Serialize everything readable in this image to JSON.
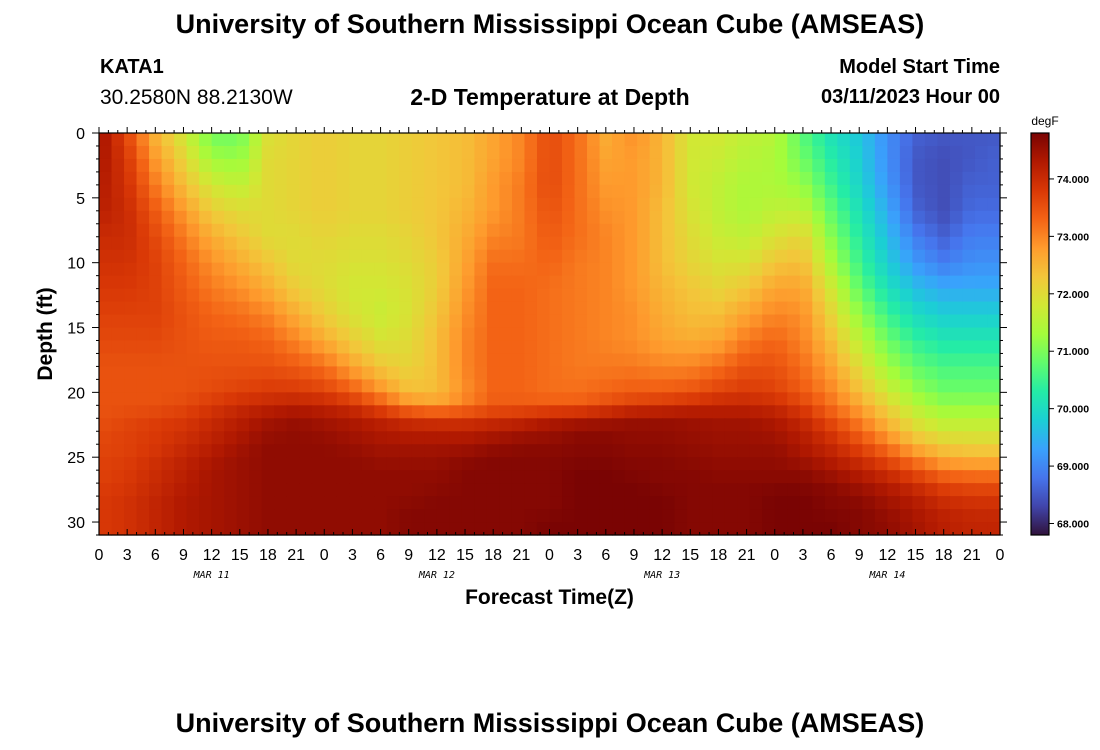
{
  "page": {
    "title": "University of Southern Mississippi Ocean Cube (AMSEAS)",
    "title_repeat": "University of Southern Mississippi Ocean Cube (AMSEAS)",
    "station_id": "KATA1",
    "station_coords": "30.2580N  88.2130W",
    "subtitle": "2-D Temperature at Depth",
    "model_start_label": "Model Start Time",
    "model_start_value": "03/11/2023 Hour 00"
  },
  "chart_data": {
    "type": "heatmap",
    "title": "2-D Temperature at Depth",
    "xlabel": "Forecast Time(Z)",
    "ylabel": "Depth (ft)",
    "x_range_hours": [
      0,
      96
    ],
    "ylim": [
      0,
      31
    ],
    "x_tick_labels": [
      "0",
      "3",
      "6",
      "9",
      "12",
      "15",
      "18",
      "21",
      "0",
      "3",
      "6",
      "9",
      "12",
      "15",
      "18",
      "21",
      "0",
      "3",
      "6",
      "9",
      "12",
      "15",
      "18",
      "21",
      "0",
      "3",
      "6",
      "9",
      "12",
      "15",
      "18",
      "21",
      "0"
    ],
    "x_tick_step_hours": 3,
    "day_labels": [
      {
        "label": "MAR 11",
        "hour": 12
      },
      {
        "label": "MAR 12",
        "hour": 36
      },
      {
        "label": "MAR 13",
        "hour": 60
      },
      {
        "label": "MAR 14",
        "hour": 84
      }
    ],
    "y_ticks": [
      0,
      5,
      10,
      15,
      20,
      25,
      30
    ],
    "colorbar": {
      "unit": "degF",
      "min": 67.8,
      "max": 74.8,
      "tick_values": [
        68,
        69,
        70,
        71,
        72,
        73,
        74
      ],
      "tick_labels": [
        "68.000",
        "69.000",
        "70.000",
        "71.000",
        "72.000",
        "73.000",
        "74.000"
      ]
    },
    "colormap": [
      "#30123b",
      "#4145ab",
      "#4675ed",
      "#39a2fc",
      "#1bcfd4",
      "#24eca6",
      "#61fc6c",
      "#a4fc3b",
      "#d1e834",
      "#f3c63a",
      "#fe9b2d",
      "#f36315",
      "#d93806",
      "#b11901",
      "#7a0403"
    ],
    "depth_levels": [
      0,
      2,
      4,
      6,
      8,
      10,
      12,
      14,
      16,
      18,
      20,
      21,
      22,
      23,
      24,
      25,
      26,
      27,
      28,
      29,
      30,
      31
    ],
    "time_hours": [
      0,
      3,
      6,
      9,
      12,
      15,
      18,
      21,
      24,
      27,
      30,
      33,
      36,
      39,
      42,
      45,
      48,
      51,
      54,
      57,
      60,
      63,
      66,
      69,
      72,
      75,
      78,
      81,
      84,
      87,
      90,
      93,
      96
    ],
    "values": [
      [
        74.5,
        73.6,
        72.5,
        71.8,
        70.9,
        70.9,
        71.9,
        72.1,
        72.2,
        72.1,
        72.1,
        72.2,
        72.3,
        72.4,
        72.7,
        73.0,
        73.6,
        73.2,
        72.6,
        72.9,
        72.5,
        71.8,
        71.8,
        71.6,
        71.5,
        70.7,
        70.1,
        69.7,
        69.1,
        68.6,
        68.5,
        68.5,
        68.5
      ],
      [
        74.4,
        73.8,
        72.8,
        72.1,
        71.3,
        71.2,
        72.0,
        72.1,
        72.2,
        72.1,
        72.1,
        72.2,
        72.3,
        72.4,
        72.7,
        73.0,
        73.6,
        73.2,
        72.7,
        72.8,
        72.5,
        71.8,
        71.7,
        71.5,
        71.4,
        70.9,
        70.3,
        69.8,
        69.1,
        68.5,
        68.4,
        68.5,
        68.6
      ],
      [
        74.3,
        73.9,
        73.1,
        72.4,
        71.8,
        71.6,
        72.0,
        72.1,
        72.2,
        72.1,
        72.1,
        72.2,
        72.3,
        72.4,
        72.8,
        73.1,
        73.6,
        73.2,
        72.8,
        72.8,
        72.5,
        71.8,
        71.6,
        71.4,
        71.4,
        71.2,
        70.5,
        69.9,
        69.2,
        68.5,
        68.4,
        68.6,
        68.6
      ],
      [
        74.2,
        74.0,
        73.4,
        72.8,
        72.2,
        72.0,
        72.0,
        72.1,
        72.2,
        72.1,
        72.1,
        72.2,
        72.3,
        72.5,
        72.8,
        73.1,
        73.5,
        73.2,
        72.9,
        72.8,
        72.4,
        71.9,
        71.6,
        71.4,
        71.6,
        71.6,
        70.8,
        70.1,
        69.4,
        68.6,
        68.4,
        68.7,
        68.7
      ],
      [
        74.0,
        74.0,
        73.6,
        73.1,
        72.6,
        72.3,
        72.0,
        72.0,
        72.1,
        72.0,
        72.0,
        72.1,
        72.3,
        72.6,
        73.0,
        73.1,
        73.4,
        73.2,
        73.0,
        72.8,
        72.4,
        72.0,
        71.7,
        71.6,
        71.9,
        72.1,
        71.1,
        70.3,
        69.6,
        68.9,
        68.6,
        68.9,
        68.9
      ],
      [
        73.9,
        73.9,
        73.7,
        73.3,
        72.9,
        72.6,
        72.3,
        72.0,
        72.0,
        71.9,
        71.9,
        72.0,
        72.2,
        72.7,
        73.2,
        73.2,
        73.3,
        73.1,
        73.0,
        72.8,
        72.4,
        72.1,
        71.9,
        71.9,
        72.3,
        72.4,
        71.4,
        70.5,
        69.8,
        69.2,
        68.9,
        69.1,
        69.1
      ],
      [
        73.8,
        73.8,
        73.7,
        73.4,
        73.1,
        72.9,
        72.6,
        72.2,
        72.0,
        71.8,
        71.8,
        71.9,
        72.2,
        72.8,
        73.3,
        73.3,
        73.2,
        73.1,
        73.0,
        72.8,
        72.5,
        72.3,
        72.1,
        72.3,
        72.7,
        72.7,
        71.8,
        70.8,
        70.1,
        69.6,
        69.4,
        69.4,
        69.4
      ],
      [
        73.7,
        73.7,
        73.7,
        73.5,
        73.3,
        73.2,
        73.0,
        72.6,
        72.2,
        71.9,
        71.7,
        71.9,
        72.3,
        72.9,
        73.3,
        73.3,
        73.2,
        73.1,
        73.0,
        72.9,
        72.6,
        72.4,
        72.4,
        72.7,
        73.0,
        72.9,
        72.1,
        71.2,
        70.5,
        70.0,
        69.8,
        69.8,
        69.8
      ],
      [
        73.6,
        73.6,
        73.6,
        73.5,
        73.4,
        73.4,
        73.3,
        73.0,
        72.6,
        72.2,
        71.9,
        72.0,
        72.4,
        73.0,
        73.3,
        73.3,
        73.2,
        73.1,
        73.0,
        72.9,
        72.7,
        72.6,
        72.7,
        73.1,
        73.3,
        73.0,
        72.4,
        71.6,
        70.9,
        70.4,
        70.2,
        70.2,
        70.2
      ],
      [
        73.5,
        73.5,
        73.5,
        73.5,
        73.5,
        73.5,
        73.5,
        73.4,
        73.2,
        72.7,
        72.3,
        72.1,
        72.4,
        73.0,
        73.3,
        73.3,
        73.2,
        73.1,
        73.1,
        73.1,
        73.0,
        73.0,
        73.2,
        73.5,
        73.5,
        73.2,
        72.7,
        72.0,
        71.3,
        70.8,
        70.6,
        70.6,
        70.6
      ],
      [
        73.5,
        73.5,
        73.5,
        73.5,
        73.6,
        73.7,
        73.8,
        73.8,
        73.7,
        73.4,
        72.9,
        72.4,
        72.4,
        72.9,
        73.3,
        73.3,
        73.2,
        73.2,
        73.3,
        73.4,
        73.4,
        73.5,
        73.7,
        73.8,
        73.7,
        73.4,
        73.0,
        72.4,
        71.8,
        71.2,
        70.9,
        70.9,
        70.9
      ],
      [
        73.5,
        73.5,
        73.5,
        73.6,
        73.8,
        74.0,
        74.1,
        74.2,
        74.1,
        73.9,
        73.5,
        73.0,
        72.8,
        73.1,
        73.4,
        73.4,
        73.4,
        73.4,
        73.6,
        73.8,
        73.9,
        74.0,
        74.1,
        74.1,
        74.0,
        73.7,
        73.2,
        72.7,
        72.1,
        71.5,
        71.2,
        71.2,
        71.2
      ],
      [
        73.5,
        73.6,
        73.7,
        73.8,
        74.0,
        74.2,
        74.4,
        74.5,
        74.4,
        74.3,
        74.1,
        73.9,
        73.8,
        73.8,
        73.9,
        74.0,
        74.2,
        74.3,
        74.4,
        74.5,
        74.5,
        74.5,
        74.4,
        74.4,
        74.3,
        74.0,
        73.5,
        73.0,
        72.4,
        71.8,
        71.5,
        71.5,
        71.5
      ],
      [
        73.6,
        73.7,
        73.8,
        73.9,
        74.1,
        74.3,
        74.5,
        74.6,
        74.5,
        74.4,
        74.3,
        74.2,
        74.2,
        74.2,
        74.3,
        74.4,
        74.5,
        74.6,
        74.6,
        74.6,
        74.6,
        74.5,
        74.5,
        74.5,
        74.4,
        74.2,
        73.8,
        73.3,
        72.7,
        72.1,
        71.8,
        71.8,
        71.8
      ],
      [
        73.6,
        73.7,
        73.8,
        74.0,
        74.2,
        74.4,
        74.6,
        74.6,
        74.6,
        74.5,
        74.4,
        74.4,
        74.4,
        74.4,
        74.5,
        74.6,
        74.6,
        74.7,
        74.7,
        74.6,
        74.6,
        74.6,
        74.5,
        74.5,
        74.5,
        74.3,
        74.0,
        73.6,
        73.1,
        72.5,
        72.2,
        72.1,
        72.1
      ],
      [
        73.7,
        73.7,
        73.9,
        74.1,
        74.3,
        74.5,
        74.6,
        74.6,
        74.6,
        74.6,
        74.5,
        74.5,
        74.5,
        74.6,
        74.7,
        74.7,
        74.7,
        74.7,
        74.7,
        74.7,
        74.7,
        74.6,
        74.6,
        74.6,
        74.6,
        74.4,
        74.2,
        73.9,
        73.5,
        73.0,
        72.6,
        72.5,
        72.5
      ],
      [
        73.7,
        73.8,
        74.0,
        74.2,
        74.4,
        74.5,
        74.6,
        74.6,
        74.6,
        74.6,
        74.6,
        74.6,
        74.6,
        74.7,
        74.7,
        74.7,
        74.7,
        74.8,
        74.8,
        74.7,
        74.7,
        74.7,
        74.6,
        74.6,
        74.6,
        74.6,
        74.4,
        74.2,
        73.9,
        73.5,
        73.1,
        73.0,
        73.0
      ],
      [
        73.7,
        73.8,
        74.0,
        74.2,
        74.4,
        74.5,
        74.6,
        74.6,
        74.6,
        74.6,
        74.6,
        74.6,
        74.6,
        74.7,
        74.7,
        74.7,
        74.7,
        74.8,
        74.8,
        74.8,
        74.7,
        74.7,
        74.7,
        74.7,
        74.7,
        74.7,
        74.6,
        74.4,
        74.2,
        73.9,
        73.6,
        73.5,
        73.5
      ],
      [
        73.8,
        73.9,
        74.1,
        74.3,
        74.4,
        74.5,
        74.6,
        74.6,
        74.6,
        74.6,
        74.6,
        74.6,
        74.7,
        74.7,
        74.7,
        74.7,
        74.7,
        74.8,
        74.8,
        74.8,
        74.8,
        74.7,
        74.7,
        74.7,
        74.8,
        74.8,
        74.7,
        74.6,
        74.4,
        74.2,
        73.9,
        73.8,
        73.8
      ],
      [
        73.8,
        73.9,
        74.1,
        74.3,
        74.4,
        74.5,
        74.6,
        74.6,
        74.6,
        74.6,
        74.6,
        74.7,
        74.7,
        74.7,
        74.7,
        74.7,
        74.7,
        74.8,
        74.8,
        74.8,
        74.8,
        74.7,
        74.7,
        74.7,
        74.8,
        74.8,
        74.7,
        74.7,
        74.5,
        74.3,
        74.1,
        74.0,
        74.0
      ],
      [
        73.8,
        73.9,
        74.1,
        74.3,
        74.4,
        74.5,
        74.6,
        74.6,
        74.6,
        74.6,
        74.6,
        74.7,
        74.7,
        74.7,
        74.7,
        74.7,
        74.8,
        74.8,
        74.8,
        74.8,
        74.8,
        74.7,
        74.7,
        74.7,
        74.8,
        74.8,
        74.8,
        74.7,
        74.6,
        74.4,
        74.2,
        74.1,
        74.1
      ],
      [
        73.8,
        73.9,
        74.1,
        74.3,
        74.4,
        74.5,
        74.6,
        74.6,
        74.6,
        74.6,
        74.6,
        74.7,
        74.7,
        74.7,
        74.7,
        74.7,
        74.8,
        74.8,
        74.8,
        74.8,
        74.8,
        74.7,
        74.7,
        74.7,
        74.8,
        74.8,
        74.8,
        74.7,
        74.6,
        74.4,
        74.2,
        74.1,
        74.1
      ]
    ]
  }
}
